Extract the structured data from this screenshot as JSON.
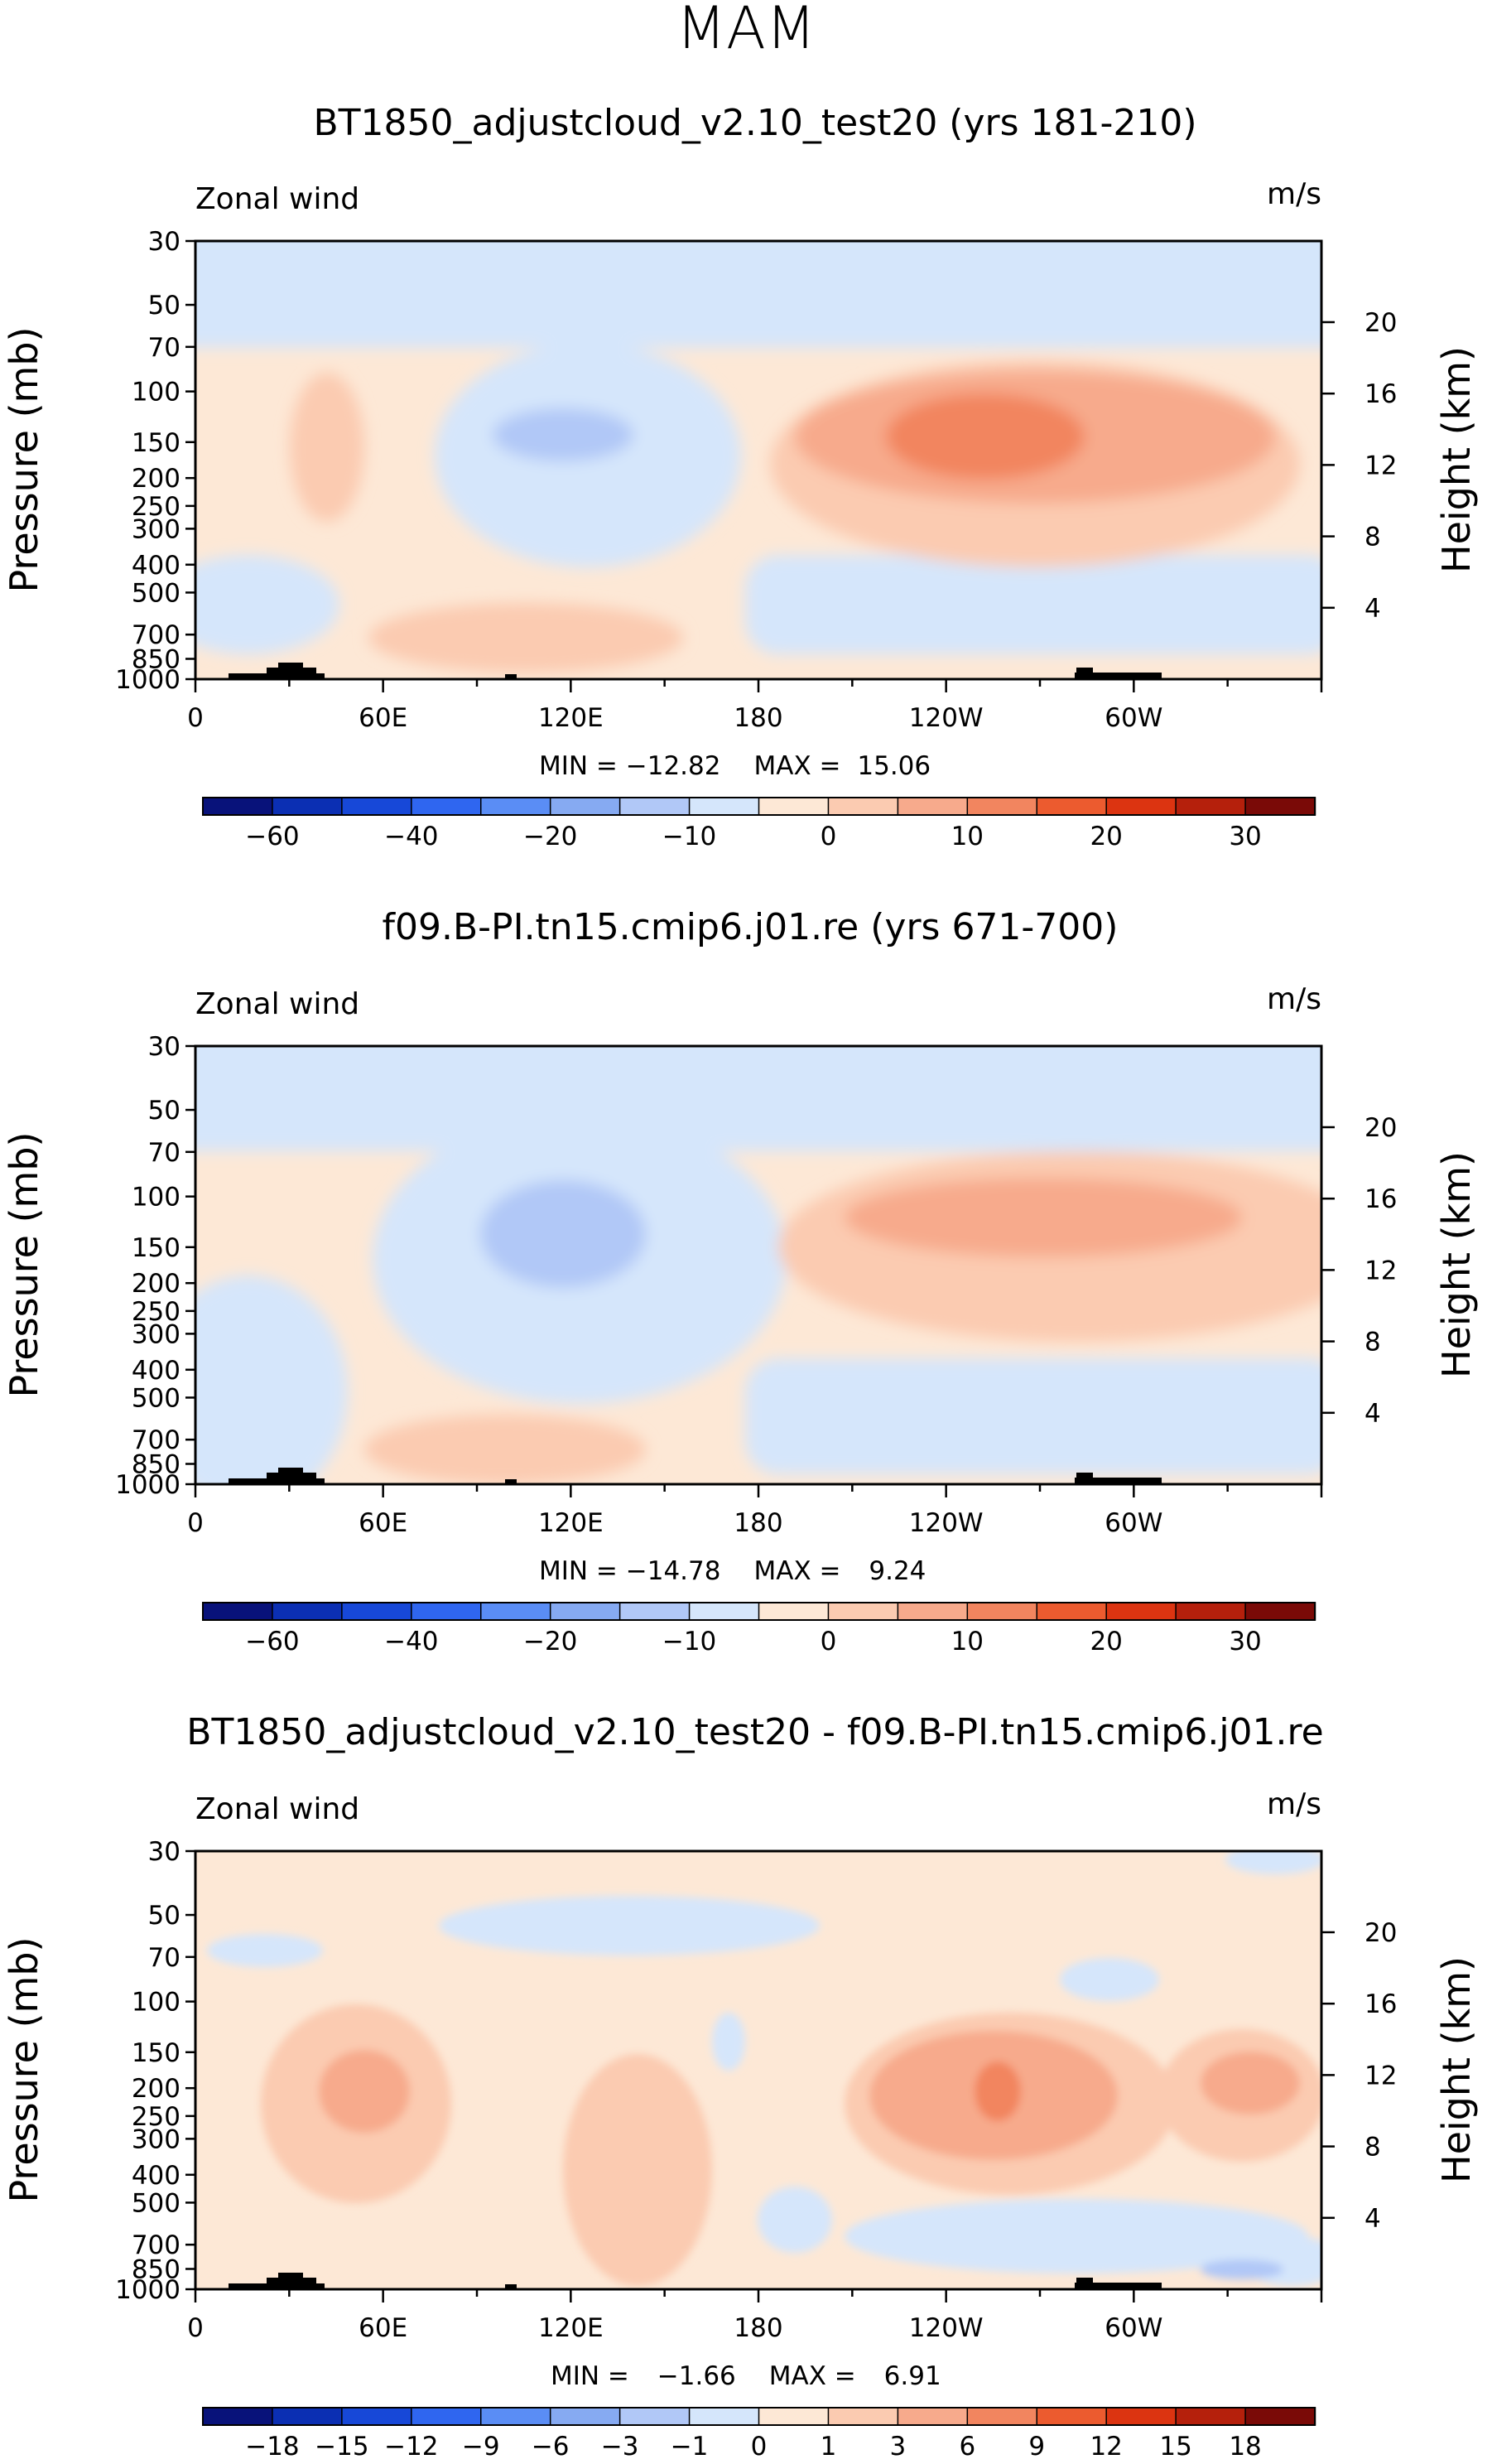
{
  "page_title": "MAM",
  "colors": {
    "land": "#000000",
    "absolute_scale": [
      "#08127a",
      "#0b2fb3",
      "#1748d8",
      "#2f66f0",
      "#5a8df5",
      "#86aaf2",
      "#b1c8f7",
      "#d5e6fb",
      "#fde8d6",
      "#fbcbb1",
      "#f7aa8c",
      "#f2855f",
      "#ec5b2f",
      "#dc3411",
      "#b5200c",
      "#7a0a07"
    ],
    "difference_scale": [
      "#08127a",
      "#0b2fb3",
      "#1748d8",
      "#2f66f0",
      "#5a8df5",
      "#86aaf2",
      "#b1c8f7",
      "#d5e6fb",
      "#fde8d6",
      "#fbcbb1",
      "#f7aa8c",
      "#f2855f",
      "#ec5b2f",
      "#dc3411",
      "#b5200c",
      "#7a0a07"
    ]
  },
  "chart_data": [
    {
      "type": "heatmap",
      "title": "BT1850_adjustcloud_v2.10_test20 (yrs 181-210)",
      "field_label": "Zonal wind",
      "units": "m/s",
      "ylabel": "Pressure (mb)",
      "y2label": "Height (km)",
      "x_ticks": [
        "0",
        "60E",
        "120E",
        "180",
        "120W",
        "60W"
      ],
      "x_values": [
        0,
        60,
        120,
        180,
        240,
        300
      ],
      "xlim": [
        0,
        360
      ],
      "pressure_ticks": [
        30,
        50,
        70,
        100,
        150,
        200,
        250,
        300,
        400,
        500,
        700,
        850,
        1000
      ],
      "ylim": [
        30,
        1000
      ],
      "height_ticks_km": [
        4,
        8,
        12,
        16,
        20
      ],
      "stats": {
        "min_label": "MIN = ",
        "min": "−12.82",
        "max_label": "MAX = ",
        "max": "15.06"
      },
      "colorbar_labels": [
        "−60",
        "−40",
        "−20",
        "−10",
        "0",
        "10",
        "20",
        "30"
      ],
      "features": [
        {
          "name": "stratospheric easterly band",
          "level": -2,
          "lon_range": [
            0,
            360
          ],
          "p_range": [
            30,
            80
          ]
        },
        {
          "name": "westerly jet core Pacific",
          "level": 4,
          "lon": [
            200,
            275
          ],
          "p": [
            100,
            220
          ],
          "value_max": 15.06
        },
        {
          "name": "easterly cell east Indian Ocean",
          "level": -2,
          "lon": [
            95,
            165
          ],
          "p": [
            120,
            240
          ],
          "value_min": -12.82
        }
      ]
    },
    {
      "type": "heatmap",
      "title": "f09.B-PI.tn15.cmip6.j01.re (yrs 671-700)",
      "field_label": "Zonal wind",
      "units": "m/s",
      "ylabel": "Pressure (mb)",
      "y2label": "Height (km)",
      "x_ticks": [
        "0",
        "60E",
        "120E",
        "180",
        "120W",
        "60W"
      ],
      "x_values": [
        0,
        60,
        120,
        180,
        240,
        300
      ],
      "xlim": [
        0,
        360
      ],
      "pressure_ticks": [
        30,
        50,
        70,
        100,
        150,
        200,
        250,
        300,
        400,
        500,
        700,
        850,
        1000
      ],
      "ylim": [
        30,
        1000
      ],
      "height_ticks_km": [
        4,
        8,
        12,
        16,
        20
      ],
      "stats": {
        "min_label": "MIN = ",
        "min": "−14.78",
        "max_label": "MAX = ",
        "max": "9.24"
      },
      "colorbar_labels": [
        "−60",
        "−40",
        "−20",
        "−10",
        "0",
        "10",
        "20",
        "30"
      ],
      "features": [
        {
          "name": "stratospheric easterly band",
          "level": -2,
          "lon_range": [
            0,
            360
          ],
          "p_range": [
            30,
            85
          ]
        },
        {
          "name": "westerly jet Pacific",
          "level": 3,
          "lon": [
            210,
            300
          ],
          "p": [
            100,
            200
          ],
          "value_max": 9.24
        },
        {
          "name": "easterly cell Indian Ocean",
          "level": -2,
          "lon": [
            90,
            150
          ],
          "p": [
            120,
            220
          ],
          "value_min": -14.78
        }
      ]
    },
    {
      "type": "heatmap",
      "title": "BT1850_adjustcloud_v2.10_test20 - f09.B-PI.tn15.cmip6.j01.re",
      "field_label": "Zonal wind",
      "units": "m/s",
      "ylabel": "Pressure (mb)",
      "y2label": "Height (km)",
      "x_ticks": [
        "0",
        "60E",
        "120E",
        "180",
        "120W",
        "60W"
      ],
      "x_values": [
        0,
        60,
        120,
        180,
        240,
        300
      ],
      "xlim": [
        0,
        360
      ],
      "pressure_ticks": [
        30,
        50,
        70,
        100,
        150,
        200,
        250,
        300,
        400,
        500,
        700,
        850,
        1000
      ],
      "ylim": [
        30,
        1000
      ],
      "height_ticks_km": [
        4,
        8,
        12,
        16,
        20
      ],
      "stats": {
        "min_label": "MIN = ",
        "min": "−1.66",
        "max_label": "MAX = ",
        "max": "6.91"
      },
      "colorbar_labels": [
        "−18",
        "−15",
        "−12",
        "−9",
        "−6",
        "−3",
        "−1",
        "0",
        "1",
        "3",
        "6",
        "9",
        "12",
        "15",
        "18"
      ],
      "features": [
        {
          "name": "positive difference cell Pacific",
          "level": 4,
          "lon": [
            250,
            270
          ],
          "p": [
            150,
            250
          ],
          "value_max": 6.91
        },
        {
          "name": "positive difference cell Indian Ocean",
          "level": 3,
          "lon": [
            35,
            65
          ],
          "p": [
            130,
            300
          ]
        },
        {
          "name": "negative difference pockets",
          "level": -1,
          "lon": [
            90,
            170
          ],
          "p": [
            40,
            80
          ]
        }
      ]
    }
  ]
}
